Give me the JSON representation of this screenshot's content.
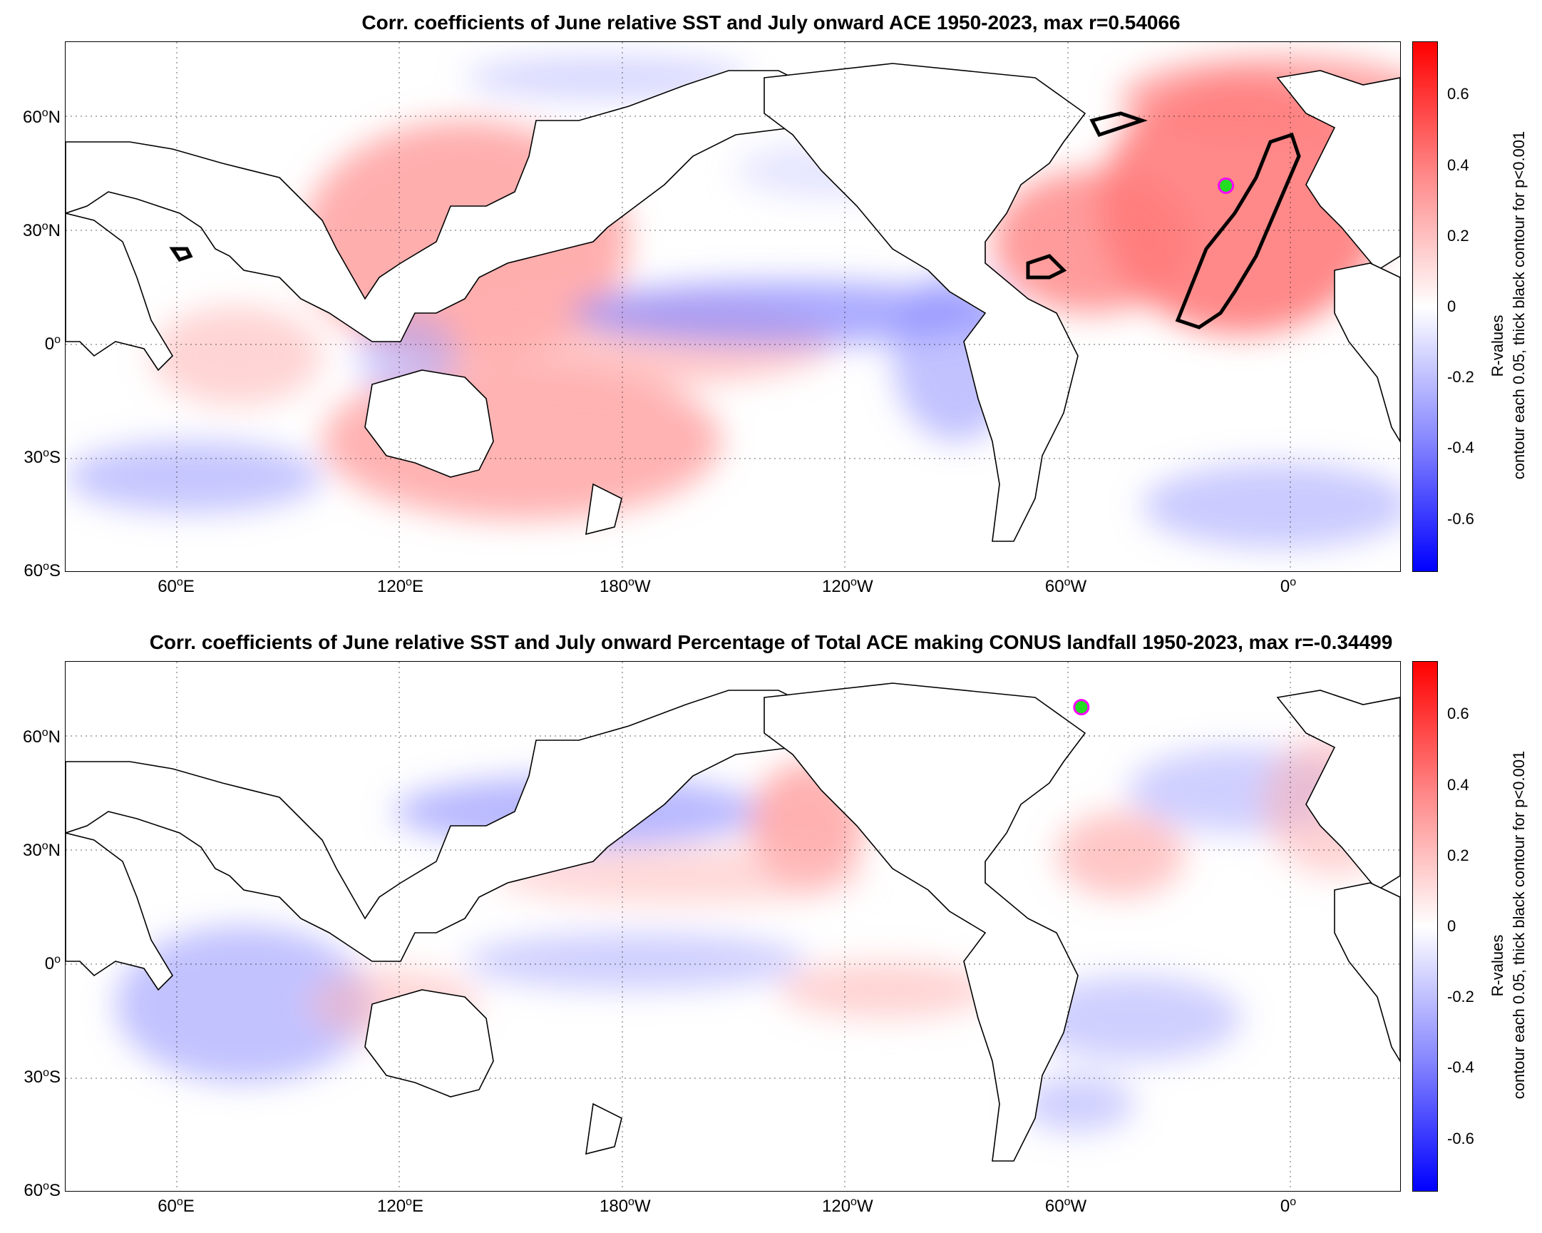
{
  "panels": [
    {
      "title": "Corr. coefficients of June relative SST and July onward ACE 1950-2023, max r=0.54066",
      "y_ticks": [
        {
          "deg": "60",
          "hemi": "N"
        },
        {
          "deg": "30",
          "hemi": "N"
        },
        {
          "deg": "0",
          "hemi": ""
        },
        {
          "deg": "30",
          "hemi": "S"
        },
        {
          "deg": "60",
          "hemi": "S"
        }
      ],
      "x_ticks": [
        {
          "deg": "60",
          "hemi": "E"
        },
        {
          "deg": "120",
          "hemi": "E"
        },
        {
          "deg": "180",
          "hemi": "W"
        },
        {
          "deg": "120",
          "hemi": "W"
        },
        {
          "deg": "60",
          "hemi": "W"
        },
        {
          "deg": "0",
          "hemi": ""
        }
      ],
      "colorbar_ticks": [
        "0.6",
        "0.4",
        "0.2",
        "0",
        "-0.2",
        "-0.4",
        "-0.6"
      ],
      "colorbar_label_line1": "R-values",
      "colorbar_label_line2": "contour each 0.05, thick black contour for p<0.001",
      "max_marker": {
        "lon": -17,
        "lat": 42,
        "r": 0.54066
      }
    },
    {
      "title": "Corr. coefficients of June relative SST and July onward Percentage of Total ACE making CONUS landfall 1950-2023, max r=-0.34499",
      "y_ticks": [
        {
          "deg": "60",
          "hemi": "N"
        },
        {
          "deg": "30",
          "hemi": "N"
        },
        {
          "deg": "0",
          "hemi": ""
        },
        {
          "deg": "30",
          "hemi": "S"
        },
        {
          "deg": "60",
          "hemi": "S"
        }
      ],
      "x_ticks": [
        {
          "deg": "60",
          "hemi": "E"
        },
        {
          "deg": "120",
          "hemi": "E"
        },
        {
          "deg": "180",
          "hemi": "W"
        },
        {
          "deg": "120",
          "hemi": "W"
        },
        {
          "deg": "60",
          "hemi": "W"
        },
        {
          "deg": "0",
          "hemi": ""
        }
      ],
      "colorbar_ticks": [
        "0.6",
        "0.4",
        "0.2",
        "0",
        "-0.2",
        "-0.4",
        "-0.6"
      ],
      "colorbar_label_line1": "R-values",
      "colorbar_label_line2": "contour each 0.05, thick black contour for p<0.001",
      "max_marker": {
        "lon": -56,
        "lat": 68,
        "r": -0.34499
      }
    }
  ],
  "colors": {
    "positive": "#ff0000",
    "negative": "#0000ff",
    "marker_fill": "#22dd22",
    "marker_edge": "#ff00ff",
    "land": "#ffffff"
  }
}
